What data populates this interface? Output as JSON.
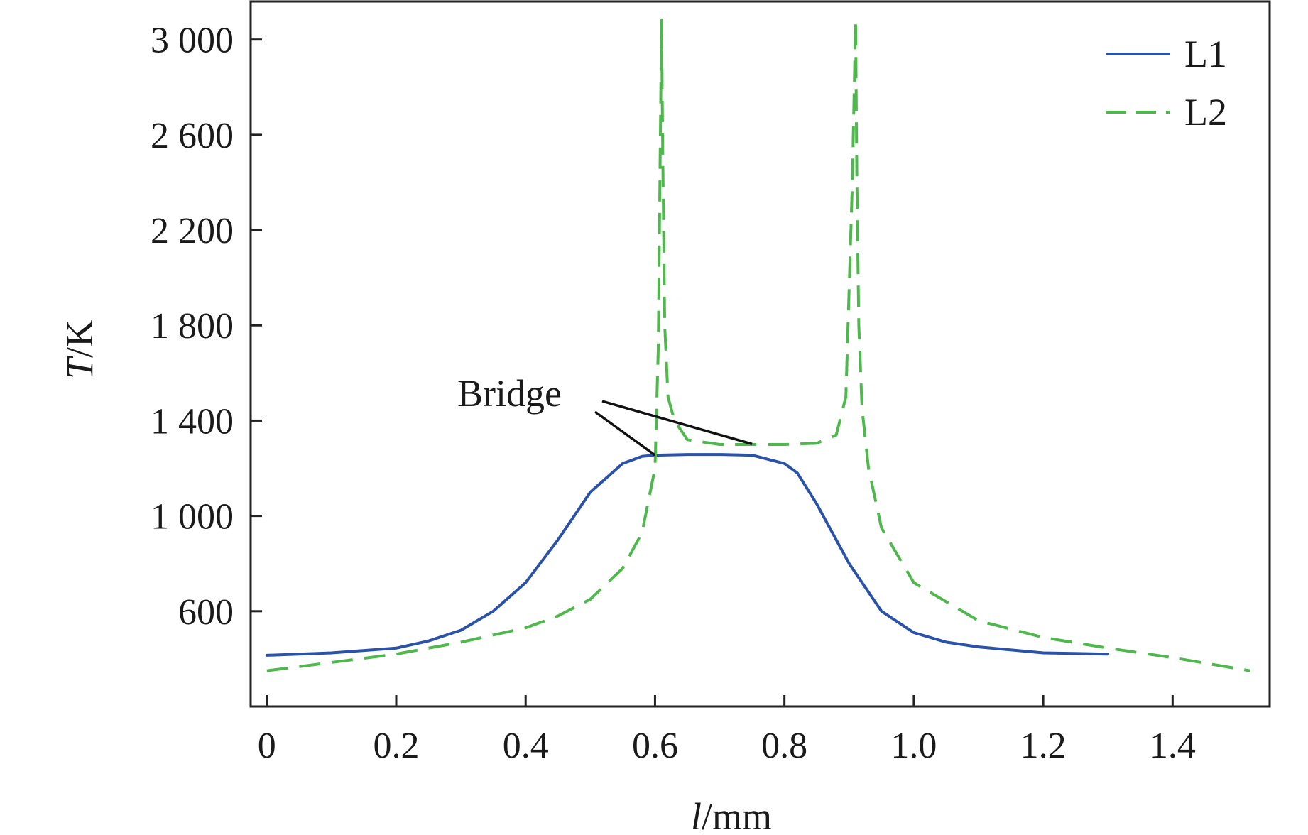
{
  "chart_data": {
    "type": "line",
    "xlabel": {
      "symbol": "l",
      "unit": "/mm"
    },
    "ylabel": {
      "symbol": "T",
      "unit": "/K"
    },
    "xlim": [
      -0.025,
      1.55
    ],
    "ylim": [
      200,
      3160
    ],
    "x_ticks": [
      0,
      0.2,
      0.4,
      0.6,
      0.8,
      1.0,
      1.2,
      1.4
    ],
    "x_tick_labels": [
      "0",
      "0.2",
      "0.4",
      "0.6",
      "0.8",
      "1.0",
      "1.2",
      "1.4"
    ],
    "y_ticks": [
      600,
      1000,
      1400,
      1800,
      2200,
      2600,
      3000
    ],
    "y_tick_labels": [
      "600",
      "1 000",
      "1 400",
      "1 800",
      "2 200",
      "2 600",
      "3 000"
    ],
    "grid": false,
    "legend_position": "top-right",
    "series": [
      {
        "name": "L1",
        "color": "#2a52a8",
        "style": "solid",
        "x": [
          0,
          0.1,
          0.2,
          0.25,
          0.3,
          0.35,
          0.4,
          0.45,
          0.5,
          0.55,
          0.58,
          0.6,
          0.65,
          0.7,
          0.75,
          0.8,
          0.82,
          0.85,
          0.9,
          0.95,
          1.0,
          1.05,
          1.1,
          1.2,
          1.3
        ],
        "y": [
          415,
          425,
          445,
          475,
          520,
          600,
          720,
          900,
          1100,
          1220,
          1250,
          1255,
          1258,
          1258,
          1255,
          1220,
          1180,
          1050,
          800,
          600,
          510,
          470,
          450,
          425,
          420
        ]
      },
      {
        "name": "L2",
        "color": "#4fb84c",
        "style": "dashed",
        "x": [
          0,
          0.2,
          0.3,
          0.4,
          0.45,
          0.5,
          0.55,
          0.58,
          0.6,
          0.605,
          0.61,
          0.612,
          0.615,
          0.62,
          0.63,
          0.65,
          0.7,
          0.75,
          0.8,
          0.85,
          0.88,
          0.895,
          0.905,
          0.91,
          0.912,
          0.915,
          0.92,
          0.93,
          0.95,
          1.0,
          1.1,
          1.2,
          1.3,
          1.4,
          1.52
        ],
        "y": [
          350,
          420,
          470,
          530,
          580,
          650,
          780,
          930,
          1200,
          1700,
          3080,
          2500,
          1800,
          1500,
          1400,
          1320,
          1300,
          1300,
          1300,
          1305,
          1340,
          1500,
          2400,
          3080,
          2400,
          1800,
          1450,
          1200,
          950,
          720,
          560,
          490,
          445,
          405,
          350
        ]
      }
    ],
    "annotations": [
      {
        "text": "Bridge",
        "targets": [
          [
            0.6,
            1255
          ],
          [
            0.75,
            1302
          ]
        ]
      }
    ]
  }
}
